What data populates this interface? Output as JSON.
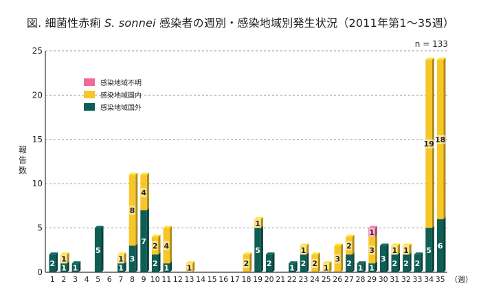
{
  "title_prefix": "図. 細菌性赤痢 ",
  "title_organism": "S. sonnei",
  "title_suffix": " 感染者の週別・感染地域別発生状況（2011年第1〜35週）",
  "n_label": "n = 133",
  "ylabel": "報告数",
  "xunit": "（週）",
  "colors": {
    "unknown": "#f06a9a",
    "domestic": "#f7c72a",
    "overseas": "#0f5e55",
    "grid": "#999999",
    "axis": "#333333"
  },
  "chart_data": {
    "type": "bar",
    "stacked": true,
    "categories": [
      "1",
      "2",
      "3",
      "4",
      "5",
      "6",
      "7",
      "8",
      "9",
      "10",
      "11",
      "12",
      "13",
      "14",
      "15",
      "16",
      "17",
      "18",
      "19",
      "20",
      "21",
      "22",
      "23",
      "24",
      "25",
      "26",
      "27",
      "28",
      "29",
      "30",
      "31",
      "32",
      "33",
      "34",
      "35"
    ],
    "series": [
      {
        "key": "overseas",
        "name": "感染地域国外",
        "values": [
          2,
          1,
          1,
          0,
          5,
          0,
          1,
          3,
          7,
          2,
          1,
          0,
          0,
          0,
          0,
          0,
          0,
          0,
          5,
          2,
          0,
          1,
          2,
          0,
          0,
          0,
          2,
          1,
          1,
          3,
          2,
          2,
          2,
          5,
          6
        ]
      },
      {
        "key": "domestic",
        "name": "感染地域国内",
        "values": [
          0,
          1,
          0,
          0,
          0,
          0,
          1,
          8,
          4,
          2,
          4,
          0,
          1,
          0,
          0,
          0,
          0,
          2,
          1,
          0,
          0,
          0,
          1,
          2,
          1,
          3,
          2,
          0,
          3,
          0,
          1,
          1,
          0,
          19,
          18
        ]
      },
      {
        "key": "unknown",
        "name": "感染地域不明",
        "values": [
          0,
          0,
          0,
          0,
          0,
          0,
          0,
          0,
          0,
          0,
          0,
          0,
          0,
          0,
          0,
          0,
          0,
          0,
          0,
          0,
          0,
          0,
          0,
          0,
          0,
          0,
          0,
          0,
          1,
          0,
          0,
          0,
          0,
          0,
          0
        ]
      }
    ],
    "ylim": [
      0,
      25
    ],
    "yticks": [
      0,
      5,
      10,
      15,
      20,
      25
    ],
    "grid": true,
    "legend_position": "top-left"
  }
}
